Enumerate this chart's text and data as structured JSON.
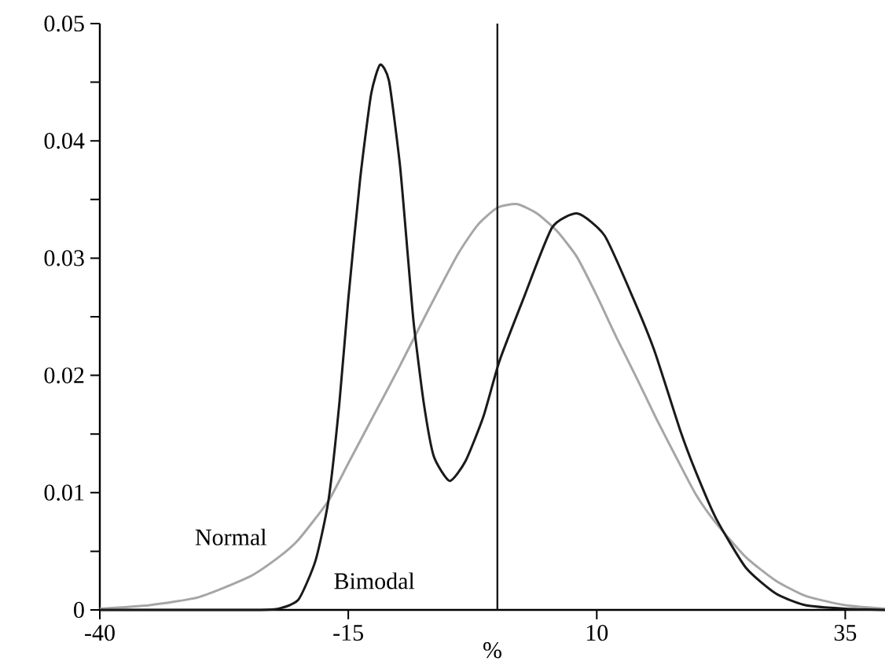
{
  "chart_data": {
    "type": "line",
    "xlabel": "%",
    "xlim": [
      -40,
      39
    ],
    "ylim": [
      0,
      0.05
    ],
    "xticks": [
      -40,
      -15,
      10,
      35
    ],
    "yticks": [
      0,
      {
        "value": 0.005,
        "label": null
      },
      0.01,
      {
        "value": 0.015,
        "label": null
      },
      0.02,
      {
        "value": 0.025,
        "label": null
      },
      0.03,
      {
        "value": 0.035,
        "label": null
      },
      0.04,
      {
        "value": 0.045,
        "label": null
      },
      0.05
    ],
    "legend": false,
    "grid": false,
    "marker": "none",
    "line_style": "solid",
    "ref_lines": [
      {
        "axis": "x",
        "value": 0,
        "color": "#1a1a1a"
      }
    ],
    "series": [
      {
        "name": "Normal",
        "color": "#a6a6a6",
        "x": [
          -40,
          -35,
          -30,
          -25,
          -22,
          -20,
          -17,
          -15,
          -12.5,
          -10,
          -7,
          -4,
          -2,
          0,
          2,
          4,
          6,
          8,
          10,
          12,
          14,
          16,
          18,
          20,
          22,
          25,
          28,
          31,
          35,
          39
        ],
        "values": [
          0.0001,
          0.0004,
          0.0011,
          0.0028,
          0.0045,
          0.006,
          0.0093,
          0.0125,
          0.0165,
          0.0205,
          0.0255,
          0.0303,
          0.0328,
          0.0343,
          0.0346,
          0.0338,
          0.0323,
          0.0301,
          0.0268,
          0.0232,
          0.0198,
          0.0163,
          0.013,
          0.0098,
          0.0074,
          0.0045,
          0.0025,
          0.0012,
          0.0004,
          0.0001
        ]
      },
      {
        "name": "Bimodal",
        "color": "#1a1a1a",
        "x": [
          -40,
          -30,
          -24,
          -22,
          -20,
          -18.3,
          -17,
          -15.9,
          -15,
          -13.8,
          -12.7,
          -11.8,
          -10.9,
          -9.8,
          -9,
          -8.4,
          -7.4,
          -6.4,
          -4.8,
          -3.2,
          -1.4,
          0.2,
          2.6,
          5.5,
          8.1,
          10.8,
          13.7,
          15.8,
          18.4,
          20,
          22,
          25,
          28,
          31,
          35,
          39
        ],
        "values": [
          0,
          0,
          0,
          0.0001,
          0.0009,
          0.0042,
          0.0093,
          0.0176,
          0.0265,
          0.0368,
          0.044,
          0.0465,
          0.0451,
          0.0379,
          0.0301,
          0.0243,
          0.0176,
          0.0131,
          0.011,
          0.0127,
          0.0165,
          0.0212,
          0.0265,
          0.0326,
          0.0338,
          0.0319,
          0.0265,
          0.0221,
          0.0153,
          0.0117,
          0.0078,
          0.0036,
          0.0014,
          0.0004,
          0.0001,
          0
        ]
      }
    ]
  }
}
